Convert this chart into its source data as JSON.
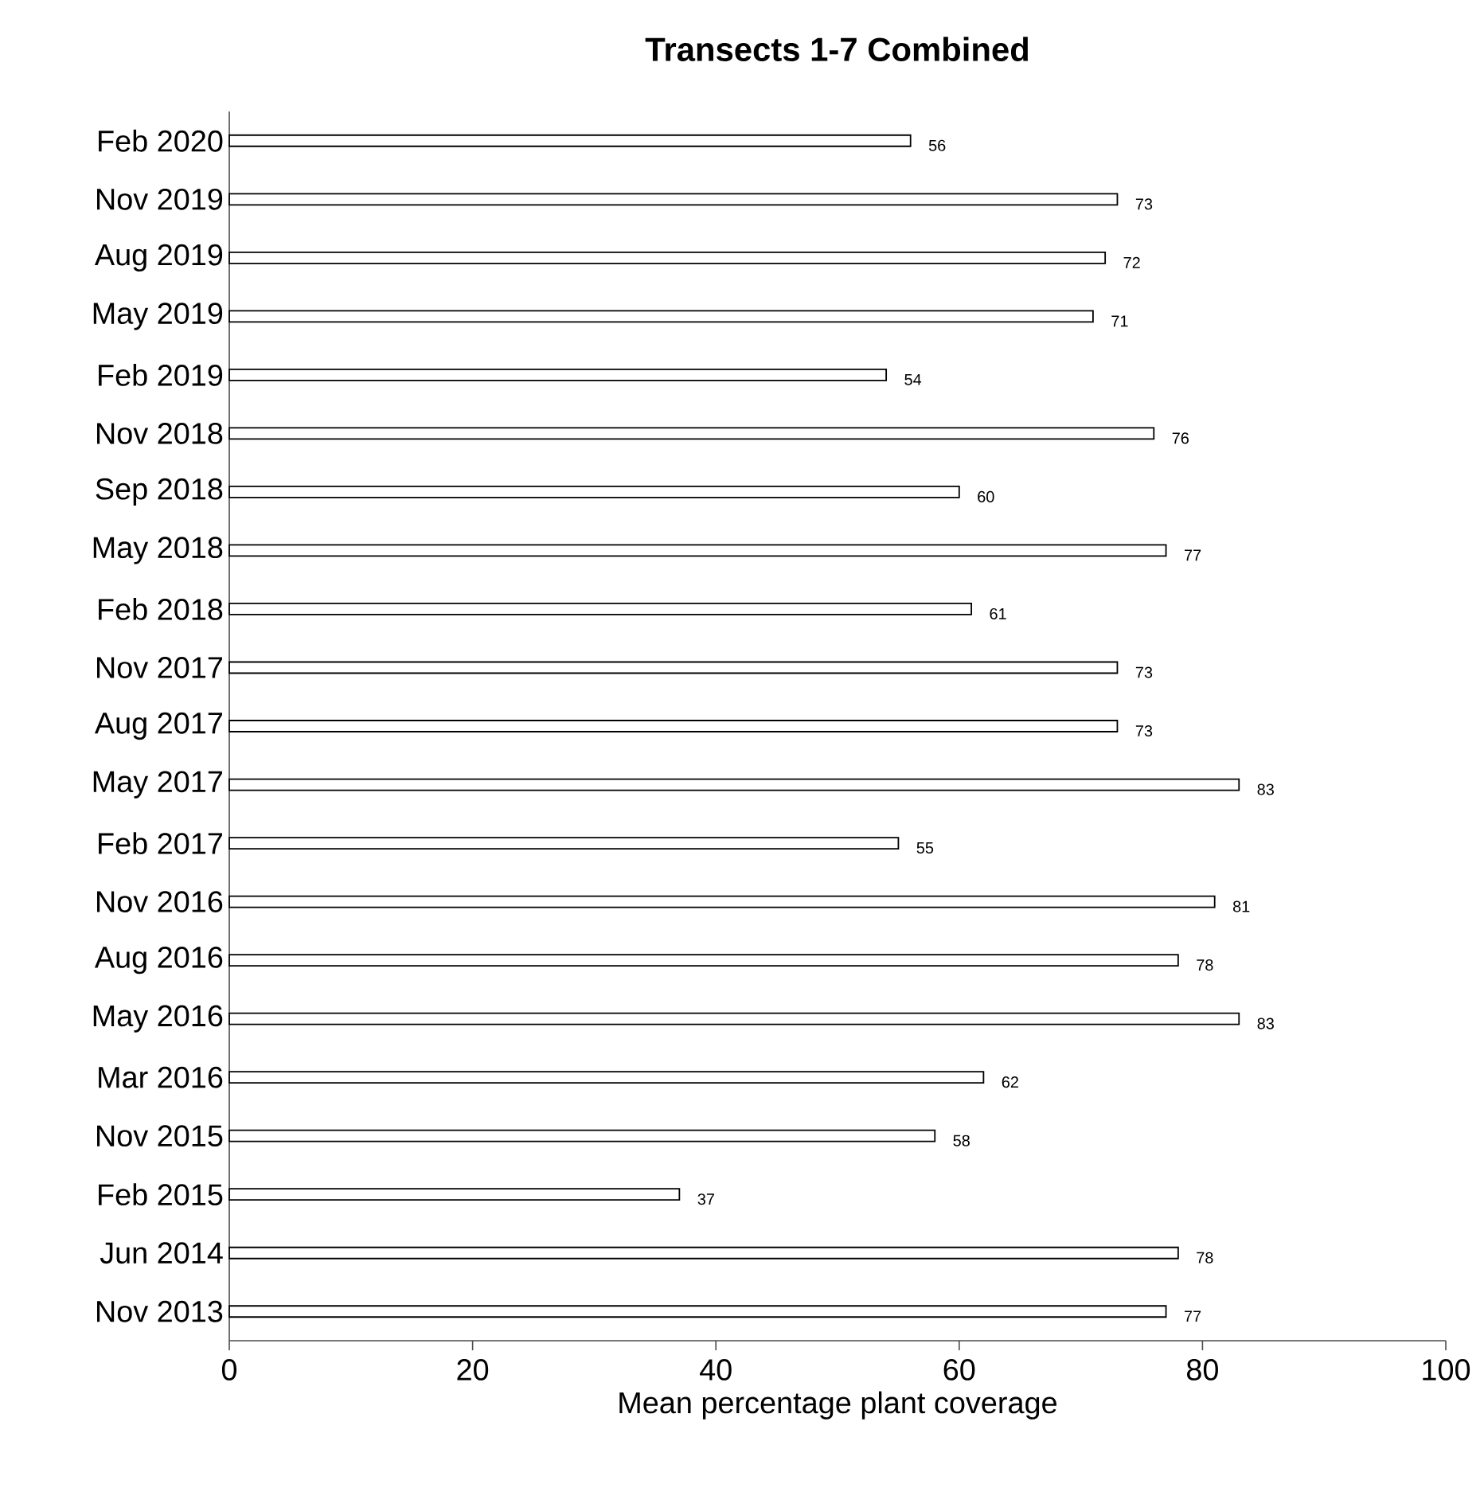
{
  "chart_data": {
    "type": "bar",
    "orientation": "horizontal",
    "title": "Transects 1-7 Combined",
    "xlabel": "Mean percentage plant coverage",
    "categories": [
      "Feb 2020",
      "Nov 2019",
      "Aug 2019",
      "May 2019",
      "Feb 2019",
      "Nov 2018",
      "Sep 2018",
      "May 2018",
      "Feb 2018",
      "Nov 2017",
      "Aug 2017",
      "May 2017",
      "Feb 2017",
      "Nov 2016",
      "Aug 2016",
      "May 2016",
      "Mar 2016",
      "Nov 2015",
      "Feb 2015",
      "Jun 2014",
      "Nov 2013"
    ],
    "values": [
      56,
      73,
      72,
      71,
      54,
      76,
      60,
      77,
      61,
      73,
      73,
      83,
      55,
      81,
      78,
      83,
      62,
      58,
      37,
      78,
      77
    ],
    "color": "#ffffff",
    "data_labels": true,
    "xlim": [
      0,
      100
    ],
    "xticks": [
      0,
      20,
      40,
      60,
      80,
      100
    ]
  }
}
